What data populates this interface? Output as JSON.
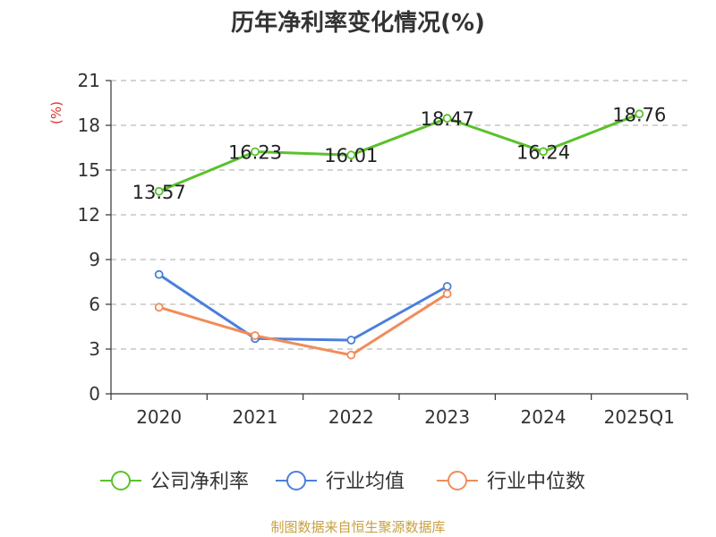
{
  "chart_data": {
    "type": "line",
    "title": "历年净利率变化情况(%)",
    "ylabel": "(%)",
    "xlabel": "",
    "categories": [
      "2020",
      "2021",
      "2022",
      "2023",
      "2024",
      "2025Q1"
    ],
    "ylim": [
      0,
      21
    ],
    "yticks": [
      0,
      3,
      6,
      9,
      12,
      15,
      18,
      21
    ],
    "grid": true,
    "legend_position": "bottom",
    "series": [
      {
        "name": "公司净利率",
        "color": "#5bc12c",
        "values": [
          13.57,
          16.23,
          16.01,
          18.47,
          16.24,
          18.76
        ],
        "show_labels": true
      },
      {
        "name": "行业均值",
        "color": "#4a7fdc",
        "values": [
          8.0,
          3.7,
          3.6,
          7.2,
          null,
          null
        ],
        "show_labels": false
      },
      {
        "name": "行业中位数",
        "color": "#f28c5a",
        "values": [
          5.8,
          3.9,
          2.6,
          6.7,
          null,
          null
        ],
        "show_labels": false
      }
    ]
  },
  "source_text": "制图数据来自恒生聚源数据库",
  "colors": {
    "title": "#333333",
    "axis": "#333333",
    "unit": "#e03030",
    "grid": "#bbbbbb",
    "source": "#c8a040"
  }
}
